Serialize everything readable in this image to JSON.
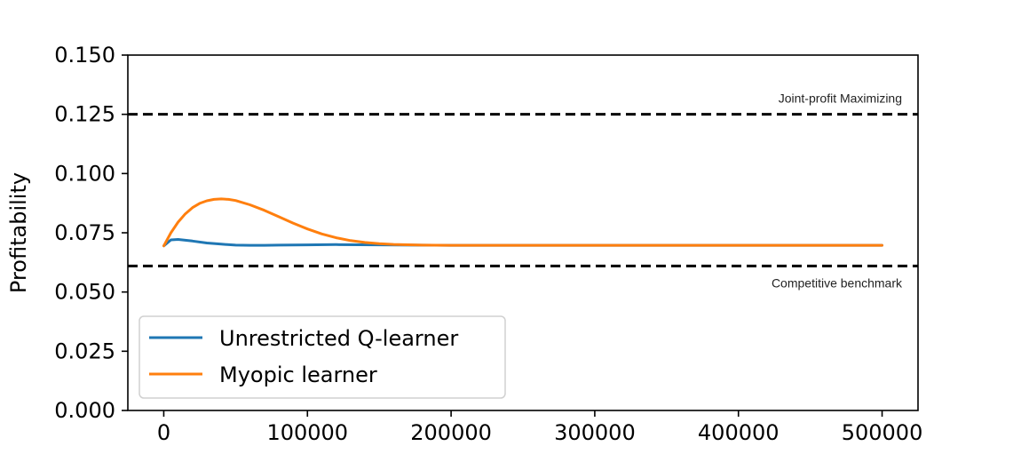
{
  "chart_data": {
    "type": "line",
    "ylabel": "Profitability",
    "xlabel": "",
    "xlim": [
      -25000,
      525000
    ],
    "ylim": [
      0.0,
      0.15
    ],
    "x_ticks": [
      0,
      100000,
      200000,
      300000,
      400000,
      500000
    ],
    "x_tick_labels": [
      "0",
      "100000",
      "200000",
      "300000",
      "400000",
      "500000"
    ],
    "y_ticks": [
      0.0,
      0.025,
      0.05,
      0.075,
      0.1,
      0.125,
      0.15
    ],
    "y_tick_labels": [
      "0.000",
      "0.025",
      "0.050",
      "0.075",
      "0.100",
      "0.125",
      "0.150"
    ],
    "grid": false,
    "legend_position": "lower-left",
    "reference_lines": [
      {
        "label": "Joint-profit Maximizing",
        "y": 0.125,
        "style": "dashed",
        "color": "#000000"
      },
      {
        "label": "Competitive benchmark",
        "y": 0.061,
        "style": "dashed",
        "color": "#000000"
      }
    ],
    "series": [
      {
        "name": "Unrestricted Q-learner",
        "color": "#1f77b4",
        "x": [
          0,
          5000,
          10000,
          20000,
          30000,
          40000,
          50000,
          60000,
          70000,
          80000,
          100000,
          120000,
          150000,
          200000,
          300000,
          400000,
          500000
        ],
        "y": [
          0.0695,
          0.072,
          0.0722,
          0.0715,
          0.0707,
          0.0702,
          0.0698,
          0.0697,
          0.0697,
          0.0698,
          0.0699,
          0.07,
          0.0699,
          0.0697,
          0.0697,
          0.0697,
          0.0697
        ]
      },
      {
        "name": "Myopic learner",
        "color": "#ff7f0e",
        "x": [
          0,
          5000,
          10000,
          15000,
          20000,
          25000,
          30000,
          35000,
          40000,
          45000,
          50000,
          60000,
          70000,
          80000,
          90000,
          100000,
          110000,
          120000,
          130000,
          140000,
          150000,
          160000,
          180000,
          200000,
          250000,
          300000,
          400000,
          500000
        ],
        "y": [
          0.0695,
          0.075,
          0.0795,
          0.083,
          0.0856,
          0.0874,
          0.0885,
          0.0891,
          0.0893,
          0.0891,
          0.0886,
          0.0868,
          0.0845,
          0.0818,
          0.0791,
          0.0766,
          0.0745,
          0.0729,
          0.0717,
          0.0709,
          0.0704,
          0.0701,
          0.0698,
          0.0697,
          0.0697,
          0.0697,
          0.0697,
          0.0697
        ]
      }
    ]
  }
}
